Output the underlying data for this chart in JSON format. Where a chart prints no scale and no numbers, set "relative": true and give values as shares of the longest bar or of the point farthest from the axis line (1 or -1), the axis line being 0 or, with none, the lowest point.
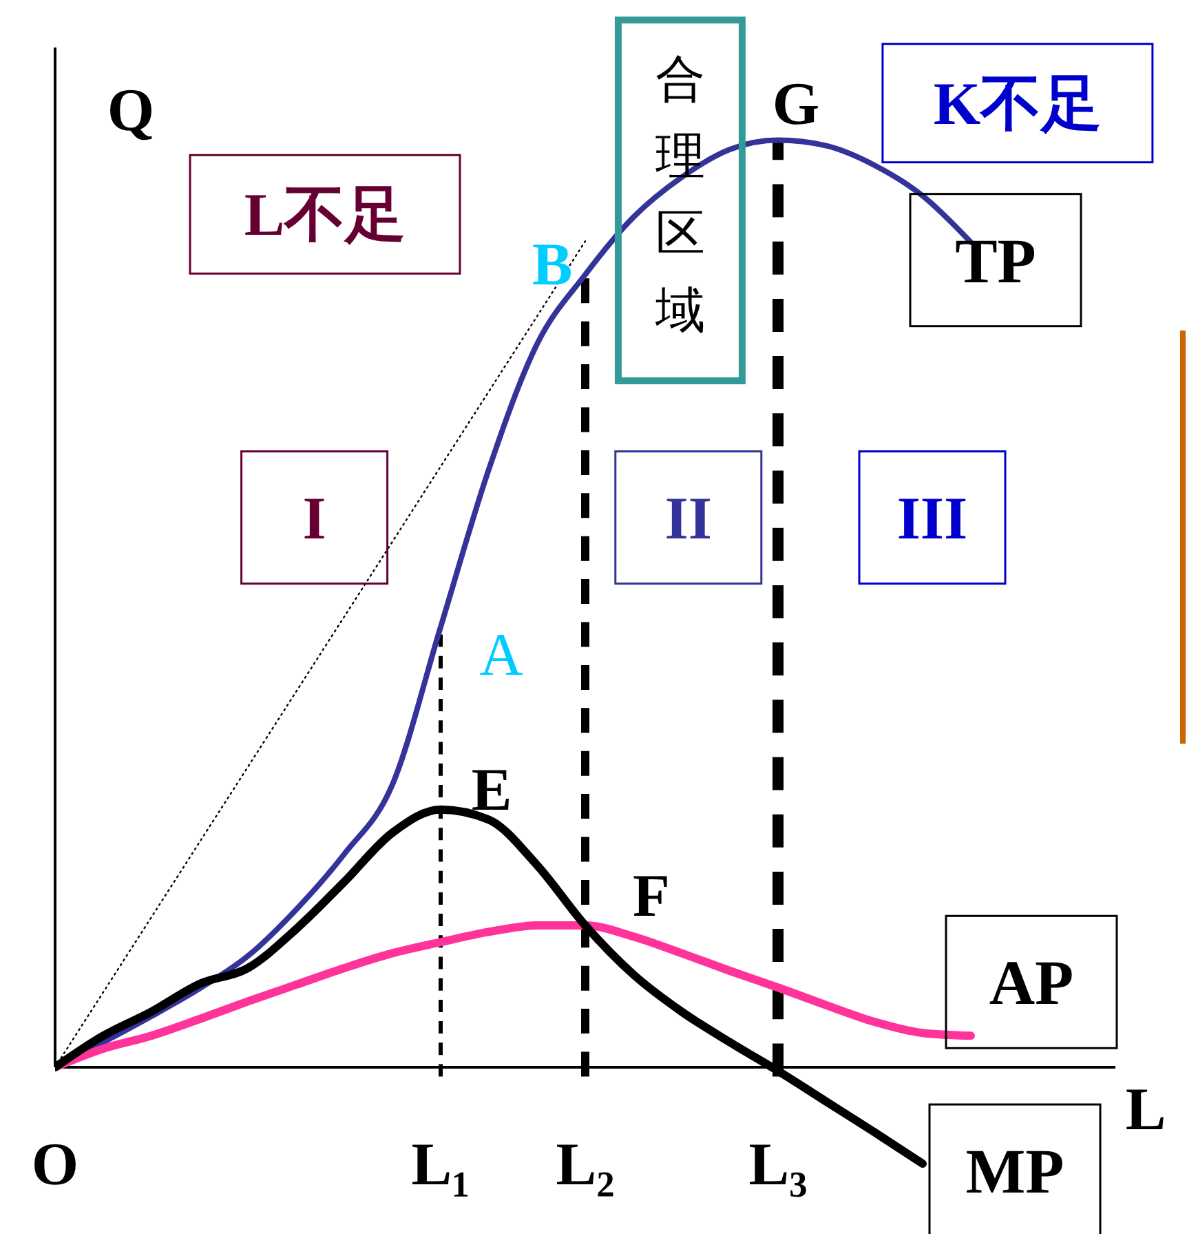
{
  "chart_data": {
    "type": "line",
    "relative": true,
    "xlabel": "L",
    "ylabel": "Q",
    "categories": [
      "O",
      null,
      null,
      null,
      null,
      null,
      null,
      null,
      "L₁",
      null,
      null,
      "L₂",
      null,
      null,
      null,
      "L₃",
      null,
      null,
      null,
      null,
      null,
      null,
      null
    ],
    "series": [
      {
        "name": "TP",
        "color": "#333399",
        "values": [
          0,
          0.027,
          0.055,
          0.085,
          0.12,
          0.17,
          0.23,
          0.305,
          0.475,
          0.645,
          0.78,
          0.855,
          0.917,
          0.96,
          0.99,
          1.0,
          0.994,
          0.973,
          0.94,
          0.89,
          null,
          null,
          null
        ]
      },
      {
        "name": "AP",
        "color": "#ff3399",
        "values": [
          0,
          0.02,
          0.034,
          0.052,
          0.071,
          0.089,
          0.107,
          0.123,
          0.135,
          0.146,
          0.153,
          0.153,
          0.141,
          0.123,
          0.104,
          0.086,
          0.067,
          0.049,
          0.037,
          0.034,
          null,
          null,
          null
        ]
      },
      {
        "name": "MP",
        "color": "#000000",
        "values": [
          0,
          0.034,
          0.06,
          0.09,
          0.107,
          0.149,
          0.2,
          0.253,
          0.278,
          0.267,
          0.218,
          0.153,
          0.1,
          0.06,
          0.027,
          -0.004,
          -0.037,
          -0.07,
          -0.104,
          null,
          null,
          null,
          null
        ]
      },
      {
        "color": "#000000",
        "line_style": "dotted",
        "values": [
          0,
          0.081,
          0.162,
          0.243,
          0.324,
          0.405,
          0.486,
          0.567,
          0.648,
          0.729,
          0.81,
          0.891,
          null,
          null,
          null,
          null,
          null,
          null,
          null,
          null,
          null,
          null,
          null
        ]
      }
    ],
    "ref_lines": [
      {
        "axis": "x",
        "value": "L₁",
        "line_style": "dashed"
      },
      {
        "axis": "x",
        "value": "L₂",
        "line_style": "dashed"
      },
      {
        "axis": "x",
        "value": "L₃",
        "line_style": "dashed"
      }
    ],
    "annotations": [
      {
        "text": "A",
        "x": "L₁",
        "y": 0.475
      },
      {
        "text": "B",
        "x": "L₂",
        "y": 0.855
      },
      {
        "text": "E",
        "x": "L₁",
        "y": 0.278
      },
      {
        "text": "F",
        "x": "L₂",
        "y": 0.153
      },
      {
        "text": "G",
        "x": "L₃",
        "y": 1.0
      },
      "L不足",
      "K不足",
      "合理区域",
      "I",
      "II",
      "III"
    ],
    "grid": false,
    "legend": "right"
  }
}
